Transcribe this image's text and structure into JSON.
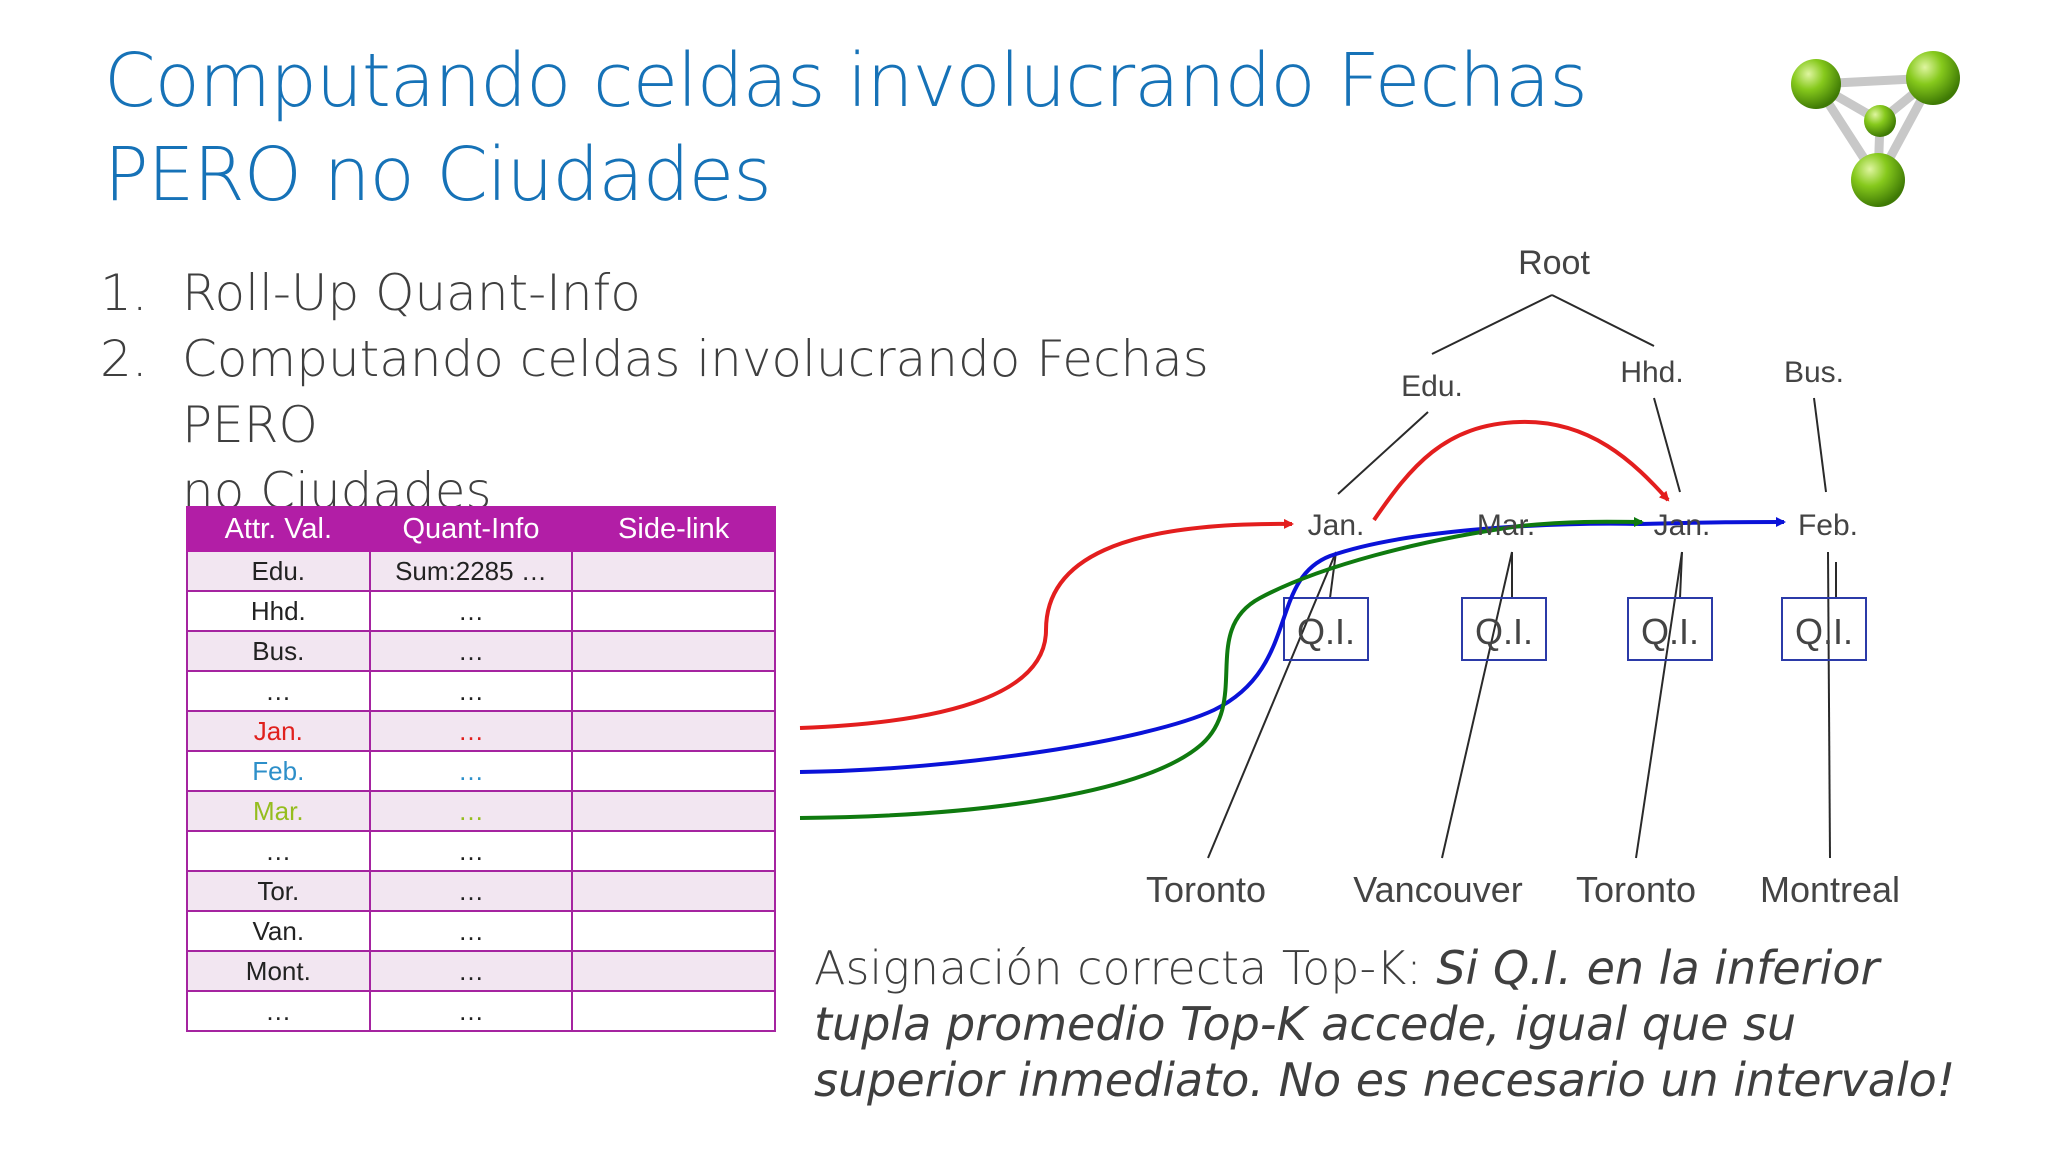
{
  "title": {
    "line1": "Computando celdas involucrando Fechas",
    "line2": "PERO no Ciudades"
  },
  "logo": {
    "icon": "molecule-logo-icon",
    "color": "#7bc21a"
  },
  "bullets": [
    {
      "num": "1.",
      "text": "Roll-Up Quant-Info"
    },
    {
      "num": "2.",
      "text": "Computando celdas involucrando Fechas PERO",
      "text2": "no Ciudades"
    }
  ],
  "table": {
    "headers": [
      "Attr. Val.",
      "Quant-Info",
      "Side-link"
    ],
    "rows": [
      {
        "attr": "Edu.",
        "quant": "Sum:2285 …",
        "side": ""
      },
      {
        "attr": "Hhd.",
        "quant": "…",
        "side": ""
      },
      {
        "attr": "Bus.",
        "quant": "…",
        "side": ""
      },
      {
        "attr": "…",
        "quant": "…",
        "side": ""
      },
      {
        "attr": "Jan.",
        "quant": "…",
        "side": ""
      },
      {
        "attr": "Feb.",
        "quant": "…",
        "side": ""
      },
      {
        "attr": "Mar.",
        "quant": "…",
        "side": ""
      },
      {
        "attr": "…",
        "quant": "…",
        "side": ""
      },
      {
        "attr": "Tor.",
        "quant": "…",
        "side": ""
      },
      {
        "attr": "Van.",
        "quant": "…",
        "side": ""
      },
      {
        "attr": "Mont.",
        "quant": "…",
        "side": ""
      },
      {
        "attr": "…",
        "quant": "…",
        "side": ""
      }
    ]
  },
  "tree": {
    "root": "Root",
    "level1": [
      "Edu.",
      "Hhd.",
      "Bus."
    ],
    "level2": [
      "Jan.",
      "Mar.",
      "Jan.",
      "Feb."
    ],
    "qi": [
      "Q.I.",
      "Q.I.",
      "Q.I.",
      "Q.I."
    ],
    "leaves": [
      "Toronto",
      "Vancouver",
      "Toronto",
      "Montreal"
    ]
  },
  "arrows": {
    "red": "#e31e1e",
    "green": "#0f7a0f",
    "blue": "#0a12d8"
  },
  "note": {
    "normal": "Asignación correcta Top-K: ",
    "italic": "Si Q.I. en la inferior tupla promedio Top-K accede, igual que su superior inmediato. No es necesario un intervalo!"
  }
}
